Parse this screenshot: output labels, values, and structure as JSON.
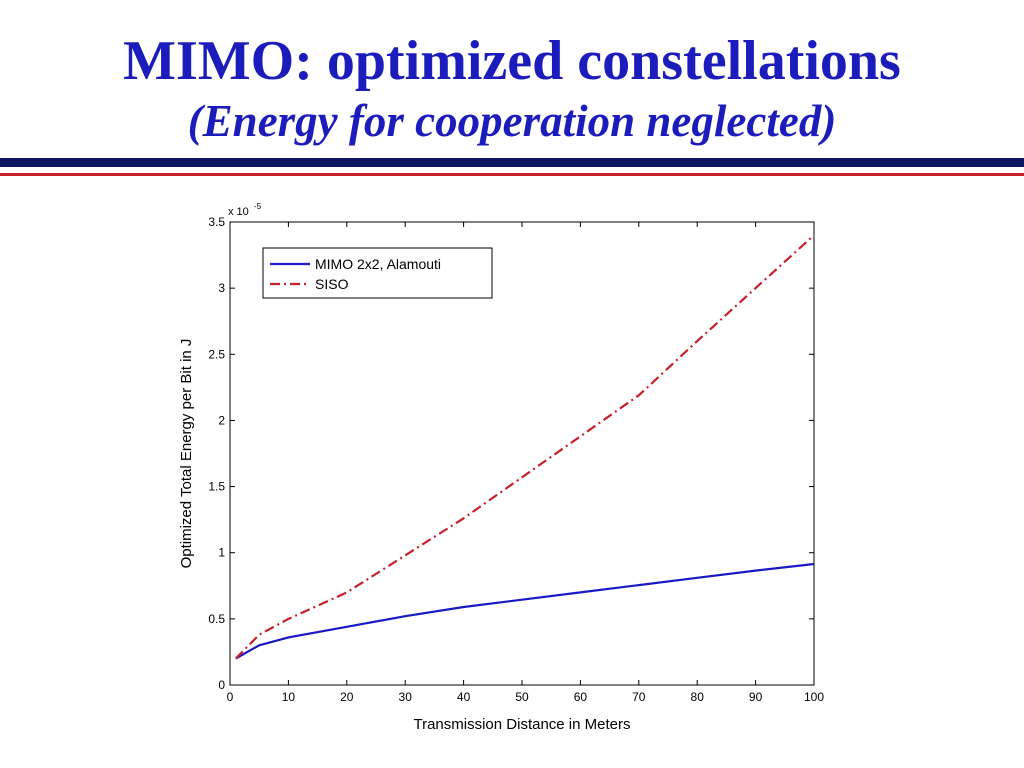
{
  "slide": {
    "title": "MIMO: optimized constellations",
    "subtitle": "(Energy for cooperation neglected)"
  },
  "colors": {
    "title": "#1c1cbd",
    "rule_top": "#0f1463",
    "rule_bottom": "#c8232c",
    "mimo_series": "#1a1ac4",
    "siso_series": "#c8202a"
  },
  "chart_data": {
    "type": "line",
    "title": "",
    "xlabel": "Transmission Distance in Meters",
    "ylabel": "Optimized Total Energy per Bit in J",
    "y_multiplier_label": "x 10",
    "y_multiplier_exponent": "-5",
    "xlim": [
      0,
      100
    ],
    "ylim": [
      0,
      3.5
    ],
    "x_ticks": [
      "0",
      "10",
      "20",
      "30",
      "40",
      "50",
      "60",
      "70",
      "80",
      "90",
      "100"
    ],
    "y_ticks": [
      "0",
      "0.5",
      "1",
      "1.5",
      "2",
      "2.5",
      "3",
      "3.5"
    ],
    "grid": false,
    "legend": "top-left",
    "series": [
      {
        "name": "MIMO 2x2, Alamouti",
        "style": "solid",
        "x": [
          1,
          5,
          10,
          20,
          30,
          40,
          50,
          60,
          70,
          80,
          90,
          100
        ],
        "y": [
          0.2,
          0.3,
          0.36,
          0.44,
          0.52,
          0.59,
          0.645,
          0.7,
          0.755,
          0.81,
          0.865,
          0.915
        ]
      },
      {
        "name": "SISO",
        "style": "dash-dot",
        "x": [
          1,
          5,
          10,
          20,
          30,
          40,
          50,
          60,
          70,
          80,
          90,
          100
        ],
        "y": [
          0.2,
          0.38,
          0.5,
          0.7,
          0.98,
          1.26,
          1.57,
          1.88,
          2.19,
          2.6,
          3.0,
          3.4
        ]
      }
    ]
  }
}
